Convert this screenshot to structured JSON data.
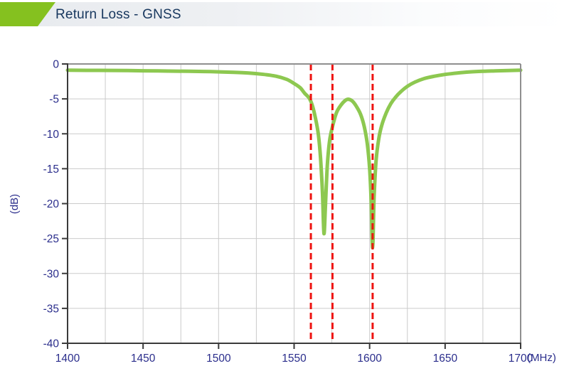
{
  "header": {
    "title": "Return Loss - GNSS"
  },
  "colors": {
    "accent_green": "#85C11F",
    "curve_green": "#8DC850",
    "marker_red": "#EE1411",
    "axis_text": "#2B2E8C",
    "title_text": "#17375E",
    "grid_gray": "#CBCBCB",
    "frame_light": "#8F8F8F",
    "frame_dark": "#3A3A3A"
  },
  "chart_data": {
    "type": "line",
    "title": "Return Loss - GNSS",
    "xlabel": "(MHz)",
    "ylabel": "(dB)",
    "xlim": [
      1400,
      1700
    ],
    "ylim": [
      -40,
      0
    ],
    "x_major_ticks": [
      1400,
      1450,
      1500,
      1550,
      1600,
      1650,
      1700
    ],
    "x_minor_step": 25,
    "y_major_ticks": [
      0,
      -5,
      -10,
      -15,
      -20,
      -25,
      -30,
      -35,
      -40
    ],
    "grid": true,
    "legend": "none",
    "marker_lines_x": [
      1561.1,
      1575.4,
      1602.0
    ],
    "series": [
      {
        "name": "Return Loss GNSS",
        "points": [
          [
            1400,
            -0.9
          ],
          [
            1420,
            -0.92
          ],
          [
            1440,
            -0.95
          ],
          [
            1460,
            -1.0
          ],
          [
            1480,
            -1.05
          ],
          [
            1495,
            -1.1
          ],
          [
            1510,
            -1.2
          ],
          [
            1520,
            -1.3
          ],
          [
            1530,
            -1.5
          ],
          [
            1538,
            -1.75
          ],
          [
            1545,
            -2.2
          ],
          [
            1550,
            -2.8
          ],
          [
            1554,
            -3.4
          ],
          [
            1557,
            -4.2
          ],
          [
            1560,
            -4.9
          ],
          [
            1562,
            -5.9
          ],
          [
            1564,
            -7.6
          ],
          [
            1566,
            -10.0
          ],
          [
            1567.5,
            -13.5
          ],
          [
            1568.8,
            -18.5
          ],
          [
            1569.8,
            -24.3
          ],
          [
            1570.8,
            -20.0
          ],
          [
            1572,
            -14.5
          ],
          [
            1573.5,
            -11.0
          ],
          [
            1575.4,
            -9.0
          ],
          [
            1578,
            -7.0
          ],
          [
            1581,
            -5.9
          ],
          [
            1584,
            -5.2
          ],
          [
            1586,
            -5.05
          ],
          [
            1588.5,
            -5.3
          ],
          [
            1591,
            -6.0
          ],
          [
            1594,
            -7.2
          ],
          [
            1596.5,
            -9.0
          ],
          [
            1598.5,
            -11.5
          ],
          [
            1600,
            -15.0
          ],
          [
            1601,
            -19.5
          ],
          [
            1602,
            -26.3
          ],
          [
            1603,
            -19.0
          ],
          [
            1604.3,
            -13.8
          ],
          [
            1606,
            -10.8
          ],
          [
            1608,
            -8.8
          ],
          [
            1611,
            -7.0
          ],
          [
            1614,
            -5.7
          ],
          [
            1617,
            -4.8
          ],
          [
            1621,
            -3.9
          ],
          [
            1625,
            -3.2
          ],
          [
            1630,
            -2.6
          ],
          [
            1636,
            -2.1
          ],
          [
            1643,
            -1.75
          ],
          [
            1650,
            -1.5
          ],
          [
            1658,
            -1.3
          ],
          [
            1666,
            -1.15
          ],
          [
            1675,
            -1.05
          ],
          [
            1685,
            -0.98
          ],
          [
            1700,
            -0.9
          ]
        ]
      }
    ]
  }
}
